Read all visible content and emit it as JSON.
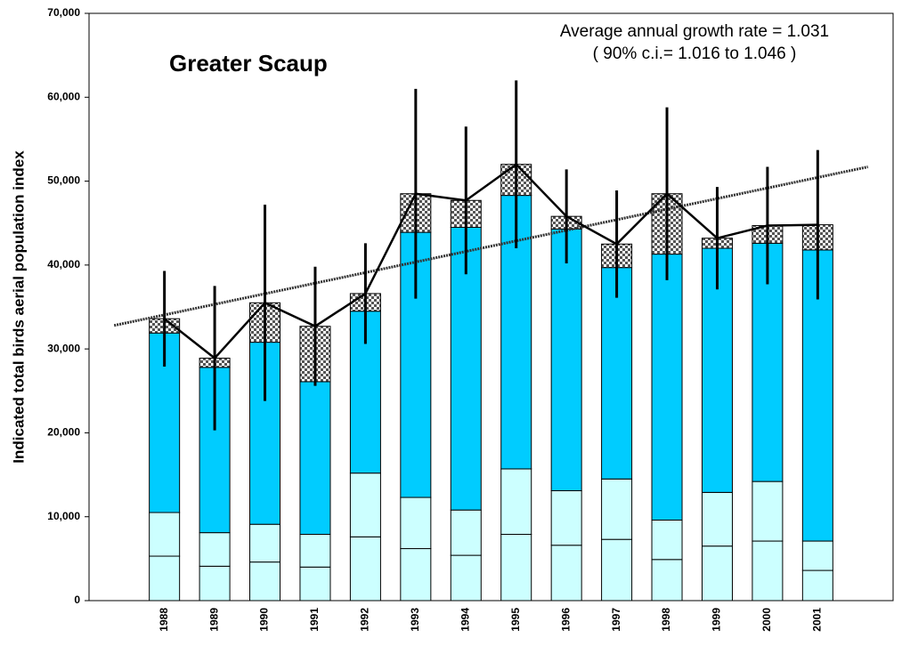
{
  "chart_data": {
    "type": "stacked-bar",
    "title": "Greater Scaup",
    "annotations": [
      "Average annual growth rate = 1.031",
      "( 90% c.i.= 1.016 to 1.046 )"
    ],
    "y_label": "Indicated total birds aerial population index",
    "categories": [
      null,
      "1988",
      "1989",
      "1990",
      "1991",
      "1992",
      "1993",
      "1994",
      "1995",
      "1996",
      "1997",
      "1998",
      "1999",
      "2000",
      "2001",
      null
    ],
    "series": [
      {
        "color": "#ccffff",
        "values": [
          null,
          5300,
          4100,
          4600,
          4000,
          7600,
          6200,
          5400,
          7900,
          6600,
          7300,
          4900,
          6500,
          7100,
          3600,
          null
        ]
      },
      {
        "color": "#ccffff",
        "values": [
          null,
          5200,
          4000,
          4500,
          3900,
          7600,
          6100,
          5400,
          7800,
          6500,
          7200,
          4700,
          6400,
          7100,
          3500,
          null
        ]
      },
      {
        "color": "#00ccff",
        "values": [
          null,
          21400,
          19700,
          21700,
          18200,
          19300,
          31600,
          33700,
          32600,
          31200,
          25200,
          31700,
          29100,
          28400,
          34700,
          null
        ]
      },
      {
        "color": "checker",
        "values": [
          null,
          1700,
          1100,
          4700,
          6600,
          2100,
          4600,
          3200,
          3700,
          1500,
          2800,
          7200,
          1200,
          2100,
          3000,
          null
        ]
      }
    ],
    "line": {
      "color": "#000000",
      "values": [
        null,
        33600,
        28900,
        35500,
        32700,
        36600,
        48500,
        47700,
        52000,
        45800,
        42500,
        48500,
        43200,
        44700,
        44800,
        null
      ],
      "errors": [
        null,
        5700,
        8600,
        11700,
        7100,
        6000,
        12500,
        8800,
        10000,
        5600,
        6400,
        10300,
        6100,
        7000,
        8900,
        null
      ]
    },
    "trend": {
      "color": "#333333",
      "dashed": true,
      "values": [
        32800,
        34060,
        35320,
        36580,
        37840,
        39100,
        40360,
        41620,
        42880,
        44140,
        45400,
        46660,
        47920,
        49180,
        50440,
        51700
      ]
    },
    "ylim": [
      0,
      70000
    ],
    "yticks": [
      0,
      {
        "value": 10000,
        "label": "10,000"
      },
      {
        "value": 20000,
        "label": "20,000"
      },
      {
        "value": 30000,
        "label": "30,000"
      },
      {
        "value": 40000,
        "label": "40,000"
      },
      {
        "value": 50000,
        "label": "50,000"
      },
      {
        "value": 60000,
        "label": "60,000"
      },
      {
        "value": 70000,
        "label": "70,000"
      }
    ]
  }
}
